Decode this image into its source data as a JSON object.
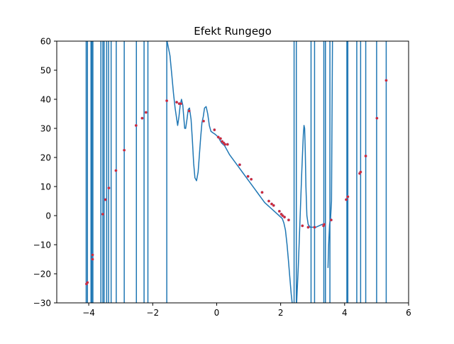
{
  "chart_data": {
    "type": "line",
    "title": "Efekt Rungego",
    "xlabel": "",
    "ylabel": "",
    "xlim": [
      -5,
      6
    ],
    "ylim": [
      -30,
      60
    ],
    "xticks": [
      -4,
      -2,
      0,
      2,
      4,
      6
    ],
    "yticks": [
      -30,
      -20,
      -10,
      0,
      10,
      20,
      30,
      40,
      50,
      60
    ],
    "xtick_labels": [
      "−4",
      "−2",
      "0",
      "2",
      "4",
      "6"
    ],
    "ytick_labels": [
      "−30",
      "−20",
      "−10",
      "0",
      "10",
      "20",
      "30",
      "40",
      "50",
      "60"
    ],
    "grid": false,
    "series": [
      {
        "kind": "line",
        "color": "#1f77b4",
        "x": [
          -1.55,
          -1.46,
          -1.4,
          -1.35,
          -1.3,
          -1.26,
          -1.22,
          -1.18,
          -1.14,
          -1.1,
          -1.06,
          -1.03,
          -1.0,
          -0.97,
          -0.93,
          -0.89,
          -0.85,
          -0.8,
          -0.76,
          -0.72,
          -0.68,
          -0.63,
          -0.58,
          -0.54,
          -0.5,
          -0.46,
          -0.42,
          -0.38,
          -0.33,
          -0.28,
          -0.23,
          -0.18,
          -0.12,
          -0.05,
          0.0,
          0.05,
          0.1,
          0.15,
          0.2,
          0.25,
          0.3,
          0.4,
          0.5,
          0.6,
          0.7,
          0.8,
          0.9,
          1.0,
          1.1,
          1.2,
          1.3,
          1.4,
          1.5,
          1.6,
          1.7,
          1.8,
          1.9,
          2.0,
          2.05,
          2.1,
          2.15,
          2.2,
          2.24,
          2.27,
          2.3,
          2.33,
          2.36
        ],
        "y": [
          60,
          55,
          48,
          42,
          37,
          34,
          31,
          34,
          38,
          40,
          38,
          34,
          30,
          30,
          33,
          36.5,
          37,
          33,
          26,
          18,
          13,
          12,
          15,
          21,
          27,
          32,
          34,
          37,
          37.5,
          35,
          31,
          29,
          28.5,
          28,
          27.5,
          27,
          26,
          25,
          24.5,
          24,
          23,
          21,
          19.5,
          18,
          16.5,
          15,
          13.5,
          12,
          10.5,
          9,
          7.5,
          6,
          4.5,
          3.5,
          2.5,
          1.5,
          0.5,
          -0.5,
          -1,
          -2.5,
          -5,
          -10,
          -15,
          -19,
          -23,
          -27,
          -30
        ]
      },
      {
        "kind": "line",
        "color": "#1f77b4",
        "x": [
          2.5,
          2.55,
          2.6,
          2.63,
          2.66,
          2.69,
          2.71,
          2.73,
          2.75,
          2.77,
          2.79,
          2.82,
          2.86,
          2.92,
          3.0,
          3.1,
          3.2,
          3.3,
          3.35
        ],
        "y": [
          -30,
          -18,
          -3,
          6,
          15,
          23,
          28,
          31,
          30,
          22,
          10,
          0,
          -3,
          -4,
          -4,
          -4,
          -3.5,
          -3,
          -3
        ]
      },
      {
        "kind": "line",
        "color": "#1f77b4",
        "x": [
          3.48,
          3.5,
          3.53,
          3.56,
          3.59,
          3.62
        ],
        "y": [
          -18,
          -10,
          -3,
          -1,
          5,
          60
        ]
      },
      {
        "kind": "vlines",
        "color": "#1f77b4",
        "x": [
          -4.08,
          -4.04,
          -3.93,
          -3.9,
          -3.87,
          -3.62,
          -3.56,
          -3.52,
          -3.44,
          -3.38,
          -3.3,
          -3.14,
          -2.89,
          -2.51,
          -2.27,
          -2.15,
          -1.56,
          2.42,
          2.49,
          2.95,
          3.06,
          3.35,
          3.4,
          3.54,
          4.07,
          4.1,
          4.38,
          4.5,
          4.66,
          5.0,
          5.3
        ]
      },
      {
        "kind": "scatter",
        "color": "#d62728",
        "x": [
          -4.07,
          -4.04,
          -3.88,
          -3.88,
          -3.56,
          -3.48,
          -3.37,
          -3.15,
          -2.89,
          -2.52,
          -2.33,
          -2.21,
          -1.56,
          -1.25,
          -1.17,
          -1.12,
          -0.86,
          -0.41,
          -0.07,
          0.05,
          0.12,
          0.17,
          0.22,
          0.26,
          0.34,
          0.72,
          0.98,
          1.08,
          1.42,
          1.63,
          1.72,
          1.78,
          1.96,
          2.02,
          2.06,
          2.12,
          2.25,
          2.68,
          2.86,
          3.06,
          3.34,
          3.36,
          3.58,
          4.05,
          4.1,
          4.47,
          4.5,
          4.66,
          5.01,
          5.3
        ],
        "y": [
          -23.5,
          -23,
          -15,
          -13.5,
          0.5,
          5.5,
          9.5,
          15.5,
          22.5,
          31,
          33.5,
          35.5,
          39.5,
          39,
          38.5,
          38.5,
          36,
          32.5,
          29.5,
          27,
          26.5,
          25.5,
          25,
          24.5,
          24.5,
          17.5,
          13.5,
          12.5,
          8,
          5,
          4,
          3.5,
          1.5,
          0.5,
          0,
          -0.5,
          -1.5,
          -3.5,
          -4,
          -4,
          -3.5,
          -3,
          -1.5,
          5.5,
          6.5,
          14.5,
          15,
          20.5,
          33.5,
          46.5
        ]
      }
    ]
  }
}
